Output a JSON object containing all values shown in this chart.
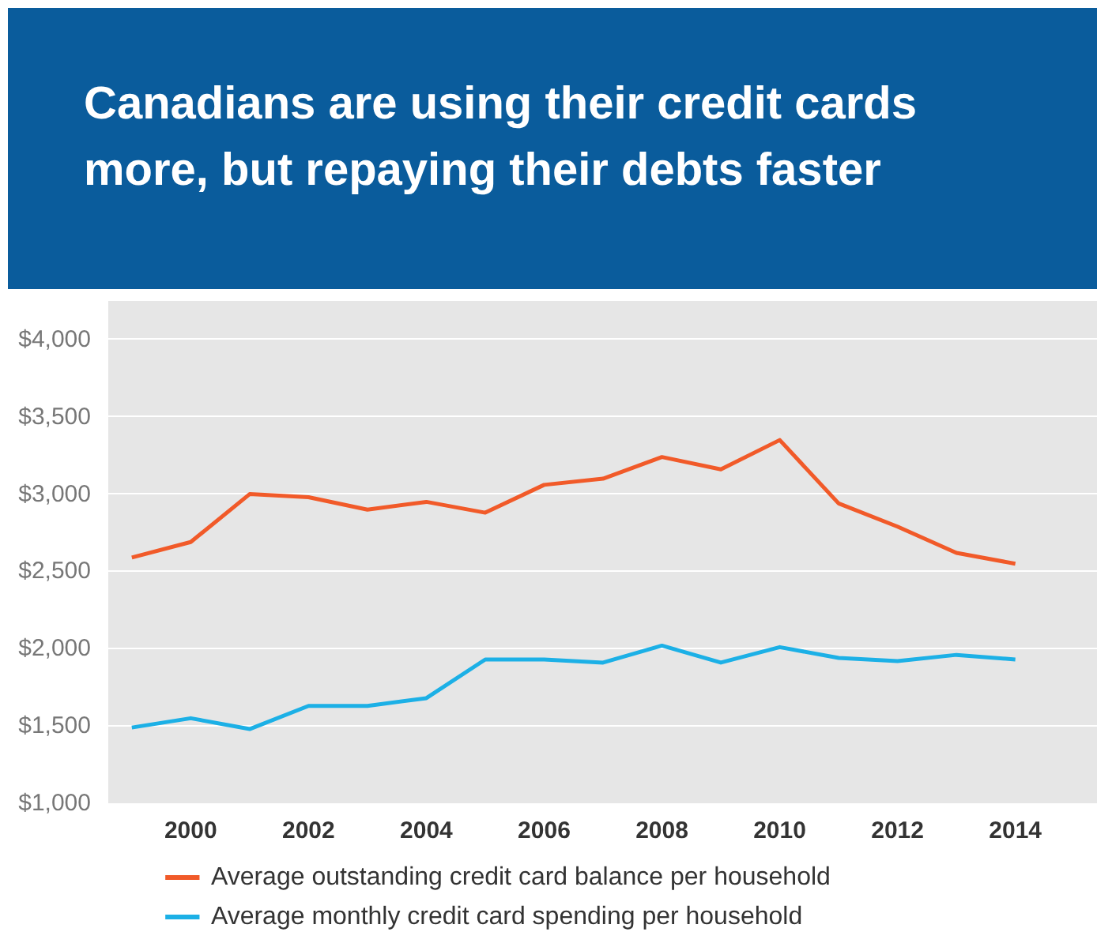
{
  "chart_data": {
    "type": "line",
    "title": "Canadians are using their credit cards more, but repaying their debts faster",
    "x": [
      1999,
      2000,
      2001,
      2002,
      2003,
      2004,
      2005,
      2006,
      2007,
      2008,
      2009,
      2010,
      2011,
      2012,
      2013,
      2014
    ],
    "series": [
      {
        "name": "Average outstanding credit card balance per household",
        "color": "#f15a29",
        "values": [
          2590,
          2690,
          3000,
          2980,
          2900,
          2950,
          2880,
          3060,
          3100,
          3240,
          3160,
          3350,
          2940,
          2790,
          2620,
          2550
        ]
      },
      {
        "name": "Average monthly credit card spending per household",
        "color": "#1cb0e6",
        "values": [
          1490,
          1550,
          1480,
          1630,
          1630,
          1680,
          1930,
          1930,
          1910,
          2020,
          1910,
          2010,
          1940,
          1920,
          1960,
          1930
        ]
      }
    ],
    "xlim": [
      1998.6,
      2015.4
    ],
    "xticks": [
      2000,
      2002,
      2004,
      2006,
      2008,
      2010,
      2012,
      2014
    ],
    "ylim": [
      1000,
      4250
    ],
    "yticks": [
      {
        "value": 1000,
        "label": "$1,000"
      },
      {
        "value": 1500,
        "label": "$1,500"
      },
      {
        "value": 2000,
        "label": "$2,000"
      },
      {
        "value": 2500,
        "label": "$2,500"
      },
      {
        "value": 3000,
        "label": "$3,000"
      },
      {
        "value": 3500,
        "label": "$3,500"
      },
      {
        "value": 4000,
        "label": "$4,000"
      }
    ],
    "grid": "y",
    "legend": "bottom",
    "marker": "none",
    "line_style": "solid"
  }
}
